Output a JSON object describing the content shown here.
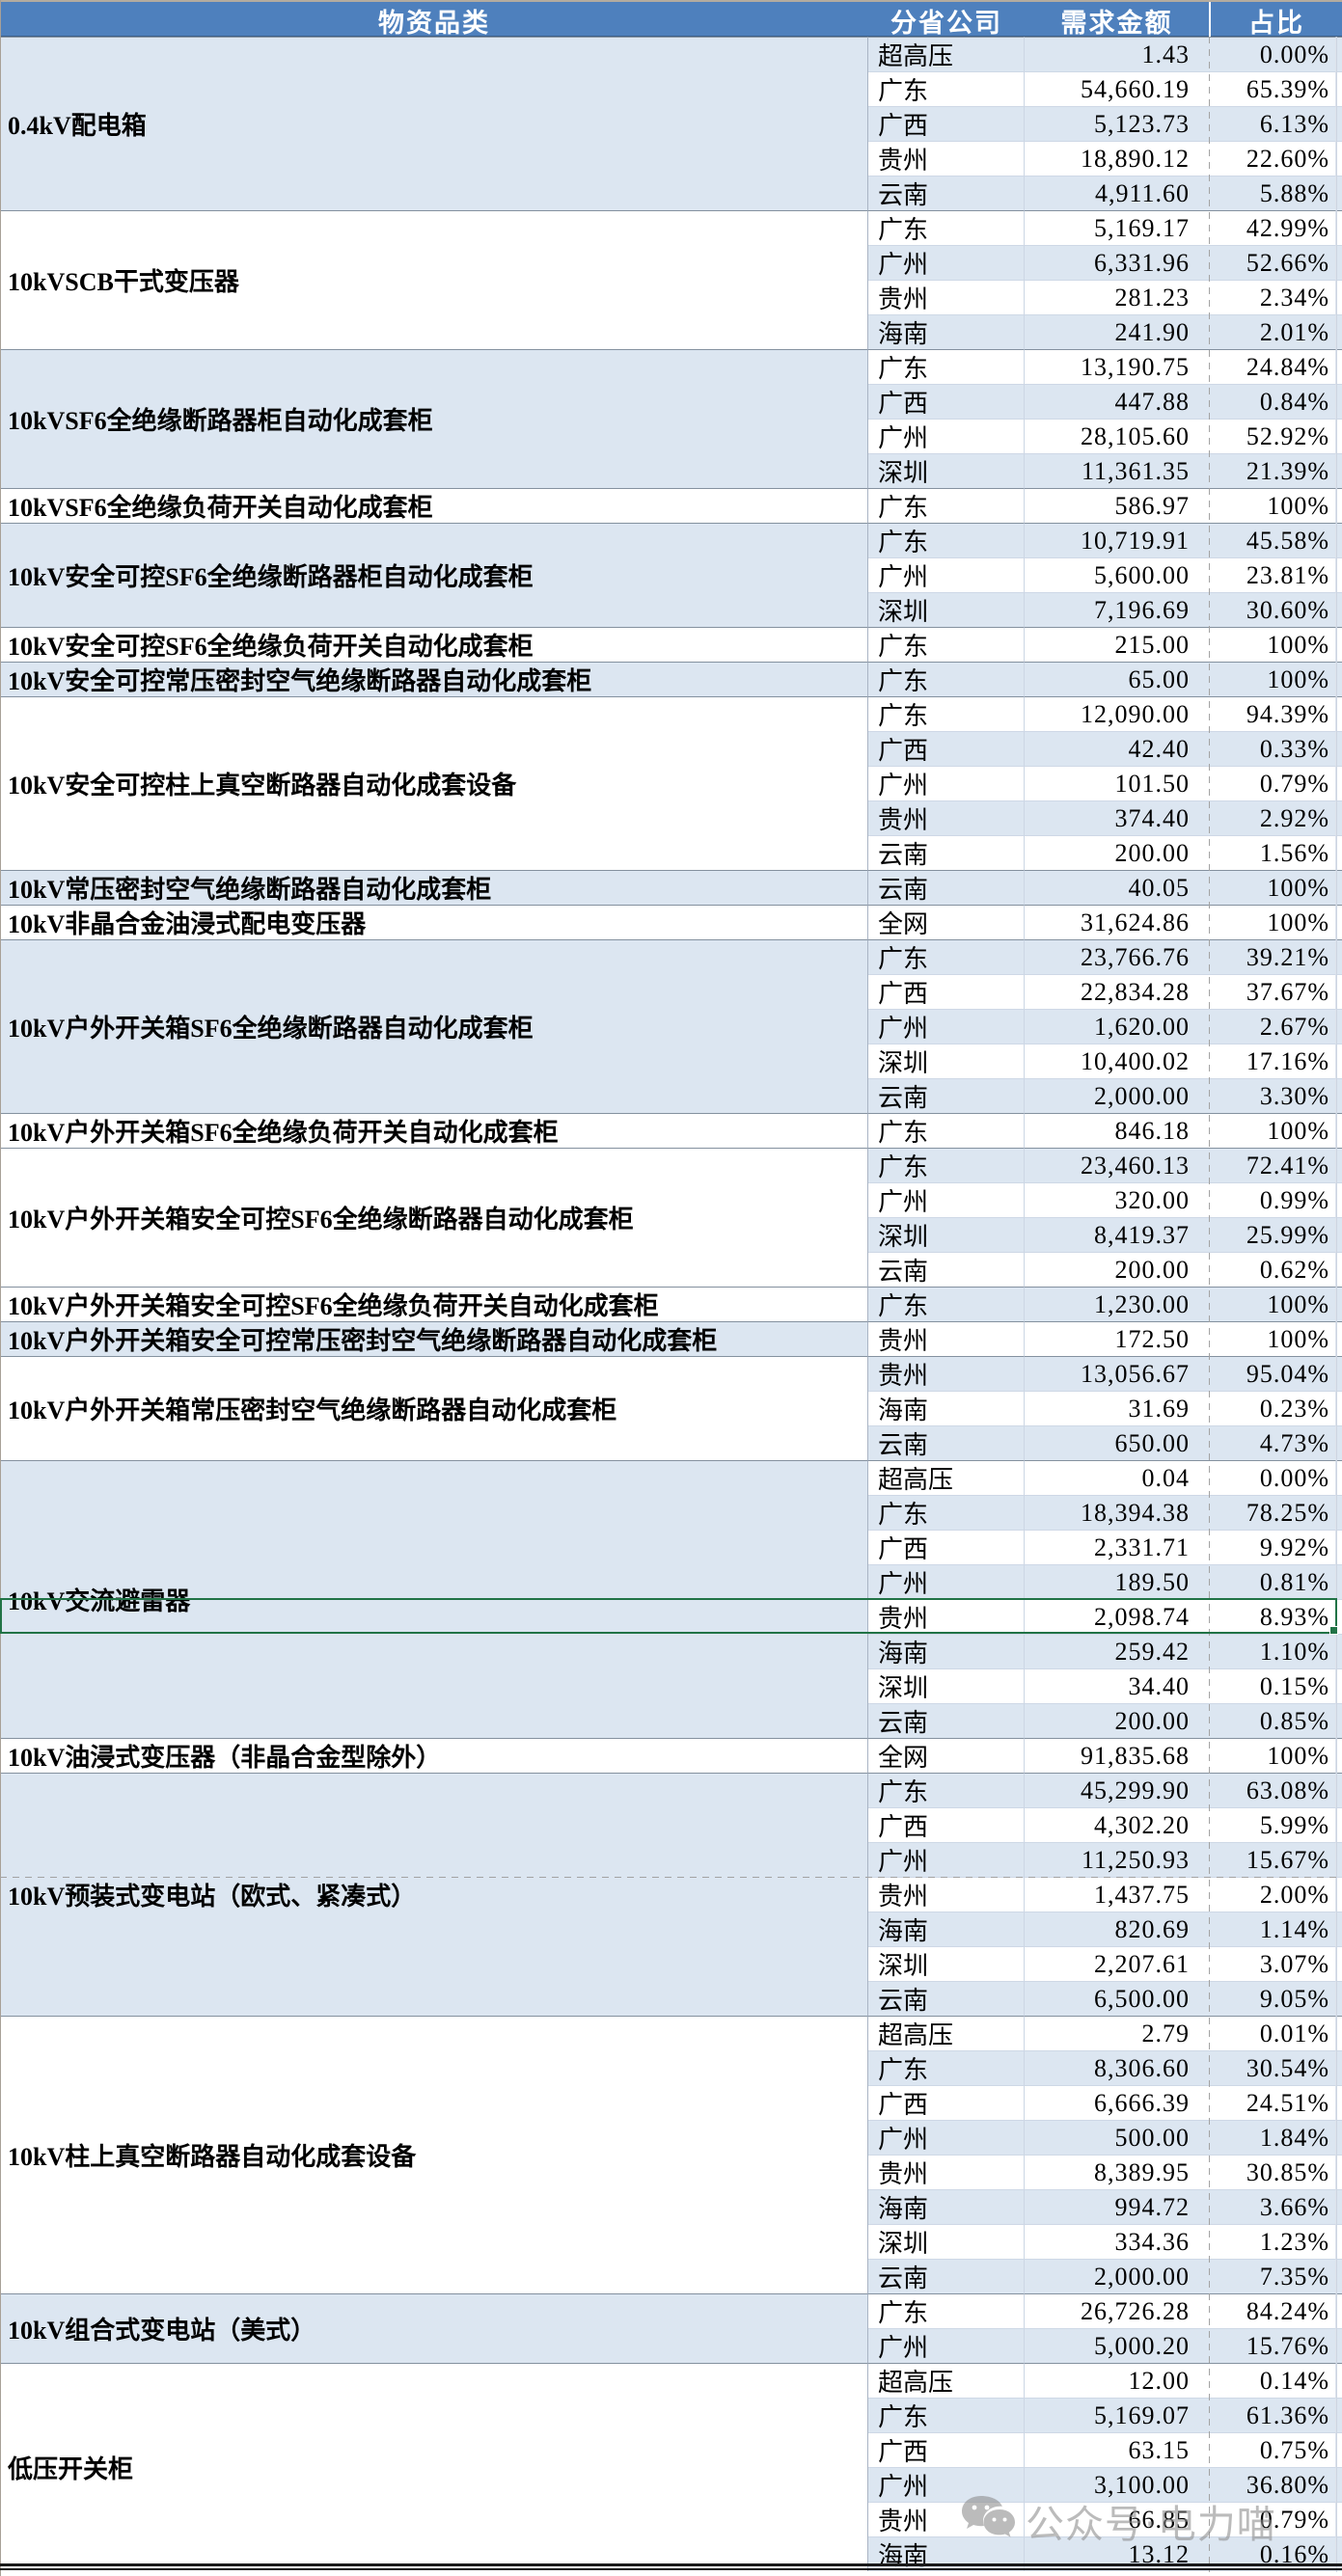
{
  "table": {
    "columns": [
      "物资品类",
      "分省公司",
      "需求金额",
      "占比"
    ],
    "blocks": [
      {
        "category": "0.4kV配电箱",
        "shade": "blue",
        "rows": [
          {
            "org": "超高压",
            "amount": "1.43",
            "pct": "0.00%"
          },
          {
            "org": "广东",
            "amount": "54,660.19",
            "pct": "65.39%"
          },
          {
            "org": "广西",
            "amount": "5,123.73",
            "pct": "6.13%"
          },
          {
            "org": "贵州",
            "amount": "18,890.12",
            "pct": "22.60%"
          },
          {
            "org": "云南",
            "amount": "4,911.60",
            "pct": "5.88%"
          }
        ]
      },
      {
        "category": "10kVSCB干式变压器",
        "shade": "white",
        "rows": [
          {
            "org": "广东",
            "amount": "5,169.17",
            "pct": "42.99%"
          },
          {
            "org": "广州",
            "amount": "6,331.96",
            "pct": "52.66%"
          },
          {
            "org": "贵州",
            "amount": "281.23",
            "pct": "2.34%"
          },
          {
            "org": "海南",
            "amount": "241.90",
            "pct": "2.01%"
          }
        ]
      },
      {
        "category": "10kVSF6全绝缘断路器柜自动化成套柜",
        "shade": "blue",
        "rows": [
          {
            "org": "广东",
            "amount": "13,190.75",
            "pct": "24.84%"
          },
          {
            "org": "广西",
            "amount": "447.88",
            "pct": "0.84%"
          },
          {
            "org": "广州",
            "amount": "28,105.60",
            "pct": "52.92%"
          },
          {
            "org": "深圳",
            "amount": "11,361.35",
            "pct": "21.39%"
          }
        ]
      },
      {
        "category": "10kVSF6全绝缘负荷开关自动化成套柜",
        "shade": "white",
        "rows": [
          {
            "org": "广东",
            "amount": "586.97",
            "pct": "100%"
          }
        ]
      },
      {
        "category": "10kV安全可控SF6全绝缘断路器柜自动化成套柜",
        "shade": "blue",
        "rows": [
          {
            "org": "广东",
            "amount": "10,719.91",
            "pct": "45.58%"
          },
          {
            "org": "广州",
            "amount": "5,600.00",
            "pct": "23.81%"
          },
          {
            "org": "深圳",
            "amount": "7,196.69",
            "pct": "30.60%"
          }
        ]
      },
      {
        "category": "10kV安全可控SF6全绝缘负荷开关自动化成套柜",
        "shade": "white",
        "rows": [
          {
            "org": "广东",
            "amount": "215.00",
            "pct": "100%"
          }
        ]
      },
      {
        "category": "10kV安全可控常压密封空气绝缘断路器自动化成套柜",
        "shade": "blue",
        "rows": [
          {
            "org": "广东",
            "amount": "65.00",
            "pct": "100%"
          }
        ]
      },
      {
        "category": "10kV安全可控柱上真空断路器自动化成套设备",
        "shade": "white",
        "rows": [
          {
            "org": "广东",
            "amount": "12,090.00",
            "pct": "94.39%"
          },
          {
            "org": "广西",
            "amount": "42.40",
            "pct": "0.33%"
          },
          {
            "org": "广州",
            "amount": "101.50",
            "pct": "0.79%"
          },
          {
            "org": "贵州",
            "amount": "374.40",
            "pct": "2.92%"
          },
          {
            "org": "云南",
            "amount": "200.00",
            "pct": "1.56%"
          }
        ]
      },
      {
        "category": "10kV常压密封空气绝缘断路器自动化成套柜",
        "shade": "blue",
        "rows": [
          {
            "org": "云南",
            "amount": "40.05",
            "pct": "100%"
          }
        ]
      },
      {
        "category": "10kV非晶合金油浸式配电变压器",
        "shade": "white",
        "rows": [
          {
            "org": "全网",
            "amount": "31,624.86",
            "pct": "100%"
          }
        ]
      },
      {
        "category": "10kV户外开关箱SF6全绝缘断路器自动化成套柜",
        "shade": "blue",
        "rows": [
          {
            "org": "广东",
            "amount": "23,766.76",
            "pct": "39.21%"
          },
          {
            "org": "广西",
            "amount": "22,834.28",
            "pct": "37.67%"
          },
          {
            "org": "广州",
            "amount": "1,620.00",
            "pct": "2.67%"
          },
          {
            "org": "深圳",
            "amount": "10,400.02",
            "pct": "17.16%"
          },
          {
            "org": "云南",
            "amount": "2,000.00",
            "pct": "3.30%"
          }
        ]
      },
      {
        "category": "10kV户外开关箱SF6全绝缘负荷开关自动化成套柜",
        "shade": "white",
        "rows": [
          {
            "org": "广东",
            "amount": "846.18",
            "pct": "100%"
          }
        ]
      },
      {
        "category": "10kV户外开关箱安全可控SF6全绝缘断路器自动化成套柜",
        "shade": "white",
        "rows": [
          {
            "org": "广东",
            "amount": "23,460.13",
            "pct": "72.41%"
          },
          {
            "org": "广州",
            "amount": "320.00",
            "pct": "0.99%"
          },
          {
            "org": "深圳",
            "amount": "8,419.37",
            "pct": "25.99%"
          },
          {
            "org": "云南",
            "amount": "200.00",
            "pct": "0.62%"
          }
        ]
      },
      {
        "category": "10kV户外开关箱安全可控SF6全绝缘负荷开关自动化成套柜",
        "shade": "white",
        "rows": [
          {
            "org": "广东",
            "amount": "1,230.00",
            "pct": "100%"
          }
        ]
      },
      {
        "category": "10kV户外开关箱安全可控常压密封空气绝缘断路器自动化成套柜",
        "shade": "blue",
        "rows": [
          {
            "org": "贵州",
            "amount": "172.50",
            "pct": "100%"
          }
        ]
      },
      {
        "category": "10kV户外开关箱常压密封空气绝缘断路器自动化成套柜",
        "shade": "white",
        "rows": [
          {
            "org": "贵州",
            "amount": "13,056.67",
            "pct": "95.04%"
          },
          {
            "org": "海南",
            "amount": "31.69",
            "pct": "0.23%"
          },
          {
            "org": "云南",
            "amount": "650.00",
            "pct": "4.73%"
          }
        ]
      },
      {
        "category": "10kV交流避雷器",
        "shade": "blue",
        "rows": [
          {
            "org": "超高压",
            "amount": "0.04",
            "pct": "0.00%"
          },
          {
            "org": "广东",
            "amount": "18,394.38",
            "pct": "78.25%"
          },
          {
            "org": "广西",
            "amount": "2,331.71",
            "pct": "9.92%"
          },
          {
            "org": "广州",
            "amount": "189.50",
            "pct": "0.81%"
          },
          {
            "org": "贵州",
            "amount": "2,098.74",
            "pct": "8.93%",
            "selected": true
          },
          {
            "org": "海南",
            "amount": "259.42",
            "pct": "1.10%"
          },
          {
            "org": "深圳",
            "amount": "34.40",
            "pct": "0.15%"
          },
          {
            "org": "云南",
            "amount": "200.00",
            "pct": "0.85%"
          }
        ]
      },
      {
        "category": "10kV油浸式变压器（非晶合金型除外）",
        "shade": "white",
        "rows": [
          {
            "org": "全网",
            "amount": "91,835.68",
            "pct": "100%"
          }
        ]
      },
      {
        "category": "10kV预装式变电站（欧式、紧凑式）",
        "shade": "blue",
        "rows": [
          {
            "org": "广东",
            "amount": "45,299.90",
            "pct": "63.08%"
          },
          {
            "org": "广西",
            "amount": "4,302.20",
            "pct": "5.99%"
          },
          {
            "org": "广州",
            "amount": "11,250.93",
            "pct": "15.67%",
            "page_break_after": true
          },
          {
            "org": "贵州",
            "amount": "1,437.75",
            "pct": "2.00%"
          },
          {
            "org": "海南",
            "amount": "820.69",
            "pct": "1.14%"
          },
          {
            "org": "深圳",
            "amount": "2,207.61",
            "pct": "3.07%"
          },
          {
            "org": "云南",
            "amount": "6,500.00",
            "pct": "9.05%"
          }
        ]
      },
      {
        "category": "10kV柱上真空断路器自动化成套设备",
        "shade": "white",
        "rows": [
          {
            "org": "超高压",
            "amount": "2.79",
            "pct": "0.01%"
          },
          {
            "org": "广东",
            "amount": "8,306.60",
            "pct": "30.54%"
          },
          {
            "org": "广西",
            "amount": "6,666.39",
            "pct": "24.51%"
          },
          {
            "org": "广州",
            "amount": "500.00",
            "pct": "1.84%"
          },
          {
            "org": "贵州",
            "amount": "8,389.95",
            "pct": "30.85%"
          },
          {
            "org": "海南",
            "amount": "994.72",
            "pct": "3.66%"
          },
          {
            "org": "深圳",
            "amount": "334.36",
            "pct": "1.23%"
          },
          {
            "org": "云南",
            "amount": "2,000.00",
            "pct": "7.35%"
          }
        ]
      },
      {
        "category": "10kV组合式变电站（美式）",
        "shade": "blue",
        "rows": [
          {
            "org": "广东",
            "amount": "26,726.28",
            "pct": "84.24%"
          },
          {
            "org": "广州",
            "amount": "5,000.20",
            "pct": "15.76%"
          }
        ]
      },
      {
        "category": "低压开关柜",
        "shade": "white",
        "rows": [
          {
            "org": "超高压",
            "amount": "12.00",
            "pct": "0.14%"
          },
          {
            "org": "广东",
            "amount": "5,169.07",
            "pct": "61.36%"
          },
          {
            "org": "广西",
            "amount": "63.15",
            "pct": "0.75%"
          },
          {
            "org": "广州",
            "amount": "3,100.00",
            "pct": "36.80%"
          },
          {
            "org": "贵州",
            "amount": "66.85",
            "pct": "0.79%"
          },
          {
            "org": "海南",
            "amount": "13.12",
            "pct": "0.16%"
          }
        ]
      }
    ]
  },
  "watermark": {
    "icon": "wechat-icon",
    "text": "公众号·电力喵"
  },
  "colors": {
    "header_bg": "#4E80BD",
    "band_blue": "#DCE6F1",
    "selection_green": "#217346",
    "page_break_dash": "#a3a3a3"
  }
}
